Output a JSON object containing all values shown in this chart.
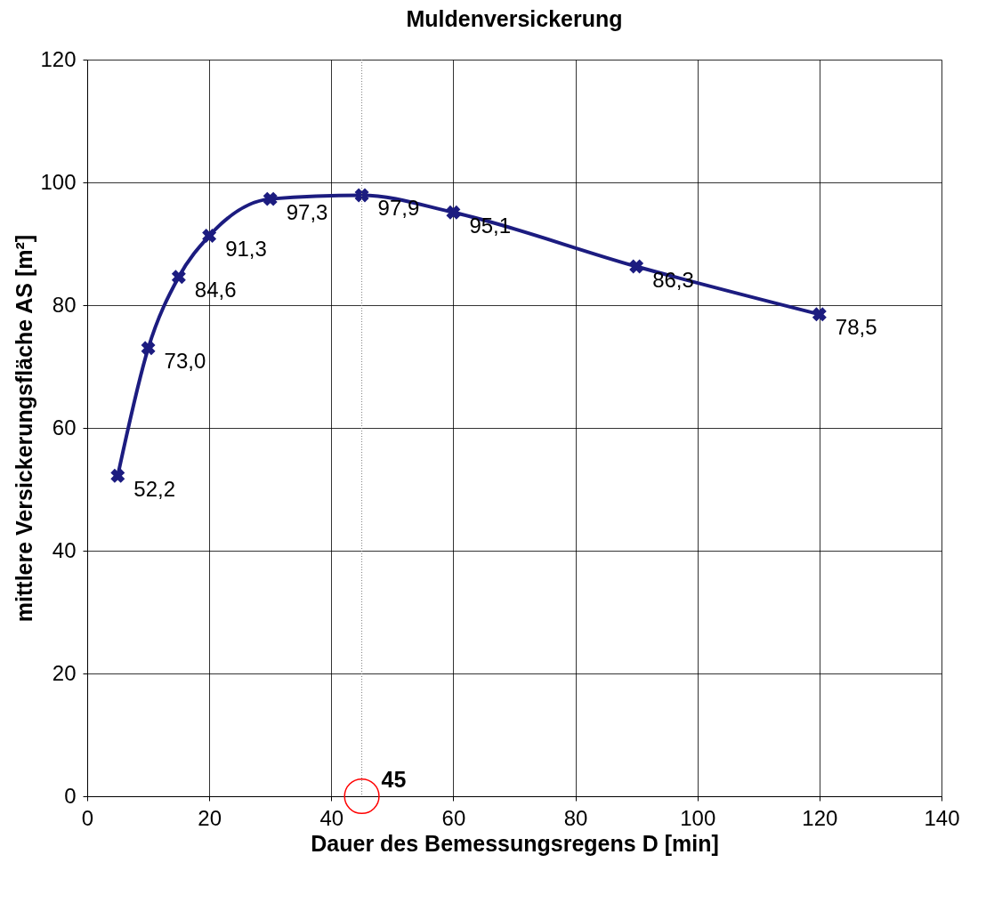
{
  "chart_data": {
    "type": "line",
    "title": "Muldenversickerung",
    "xlabel": "Dauer des Bemessungsregens  D [min]",
    "ylabel": "mittlere Versickerungsfläche AS [m²]",
    "x": [
      5,
      10,
      15,
      20,
      30,
      45,
      60,
      90,
      120
    ],
    "series": [
      {
        "color": "#1c1c80",
        "values": [
          52.2,
          73.0,
          84.6,
          91.3,
          97.3,
          97.9,
          95.1,
          86.3,
          78.5
        ],
        "value_labels": [
          "52,2",
          "73,0",
          "84,6",
          "91,3",
          "97,3",
          "97,9",
          "95,1",
          "86,3",
          "78,5"
        ]
      }
    ],
    "xlim": [
      0,
      140
    ],
    "xticks": [
      0,
      20,
      40,
      60,
      80,
      100,
      120,
      140
    ],
    "ylim": [
      0,
      120
    ],
    "yticks": [
      0,
      20,
      40,
      60,
      80,
      100,
      120
    ],
    "grid": true,
    "marker": "cross",
    "line_style": "solid",
    "ref_lines": [
      {
        "axis": "x",
        "value": 45,
        "color": "#808080",
        "line_style": "dotted"
      }
    ],
    "annotations": [
      {
        "text": "45",
        "x": 45,
        "y": 0
      }
    ]
  }
}
